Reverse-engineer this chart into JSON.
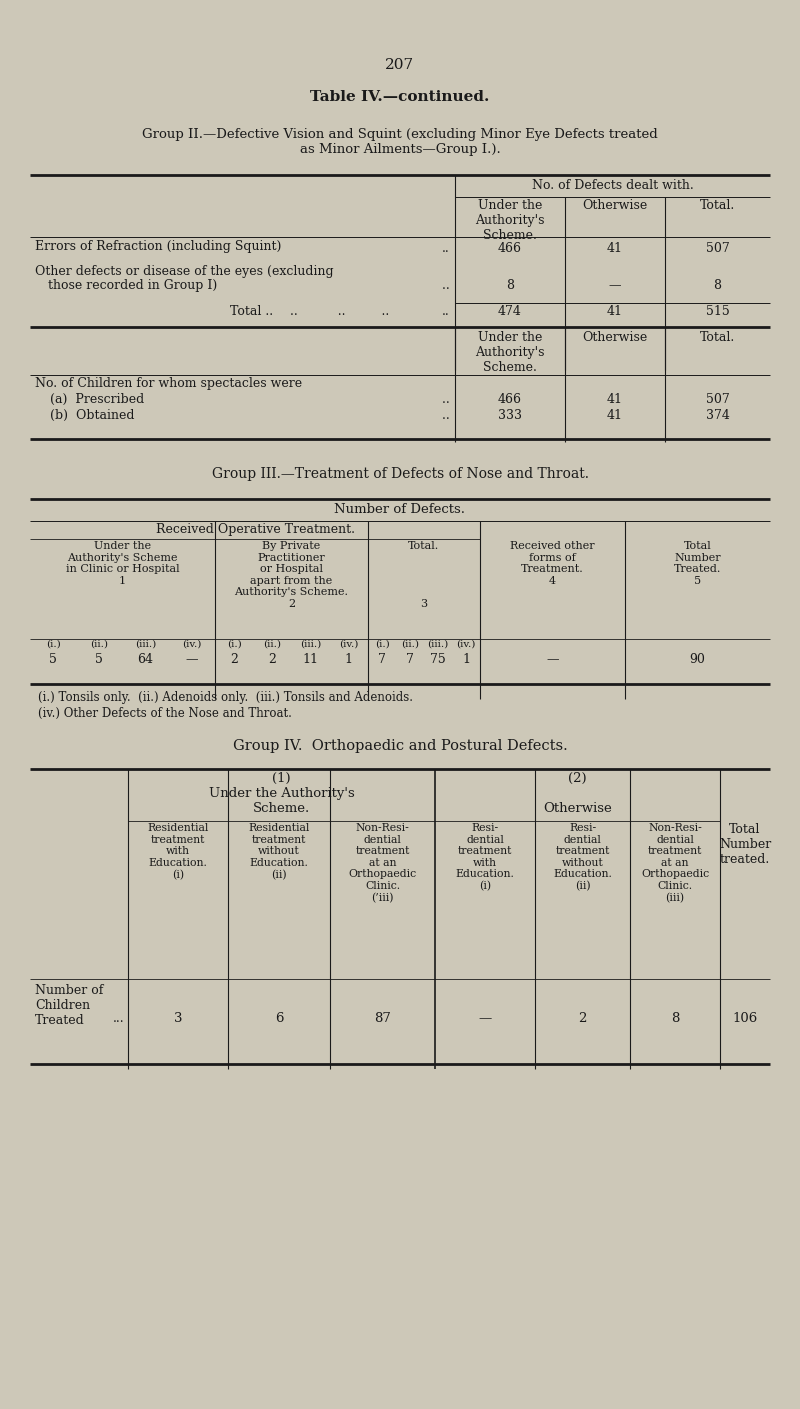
{
  "bg_color": "#cdc8b8",
  "text_color": "#1a1a1a",
  "page_number": "207",
  "title": "Table IV.—continued.",
  "g2_heading_line1": "Group II.—Defective Vision and Squint (excluding Minor Eye Defects treated",
  "g2_heading_line2": "as Minor Ailments—Group I.).",
  "g3_heading": "Group III.—Treatment of Defects of Nose and Throat.",
  "g3_subheading": "Number of Defects.",
  "g4_heading": "Group IV.  Orthopaedic and Postural Defects.",
  "fn1": "(i.) Tonsils only.  (ii.) Adenoids only.  (iii.) Tonsils and Adenoids.",
  "fn2": "(iv.) Other Defects of the Nose and Throat."
}
